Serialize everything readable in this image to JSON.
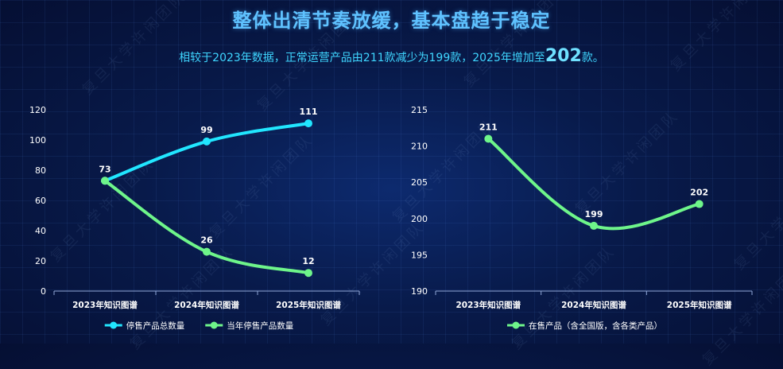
{
  "title": "整体出清节奏放缓，基本盘趋于稳定",
  "subtitle": {
    "prefix": "相较于2023年数据，正常运营产品由211款减少为199款，2025年增加至",
    "highlight": "202",
    "suffix": "款。"
  },
  "watermark": "复旦大学许闲团队",
  "colors": {
    "cyan": "#21e6ff",
    "green": "#6ef58a",
    "axis_text": "#ffffff"
  },
  "chart_data": [
    {
      "type": "line",
      "categories": [
        "2023年知识图谱",
        "2024年知识图谱",
        "2025年知识图谱"
      ],
      "ylim": [
        0,
        120
      ],
      "yticks": [
        0,
        20,
        40,
        60,
        80,
        100,
        120
      ],
      "legend": "bottom-center",
      "series": [
        {
          "name": "停售产品总数量",
          "values": [
            73,
            99,
            111
          ],
          "color": "#21e6ff"
        },
        {
          "name": "当年停售产品数量",
          "values": [
            73,
            26,
            12
          ],
          "color": "#6ef58a"
        }
      ]
    },
    {
      "type": "line",
      "categories": [
        "2023年知识图谱",
        "2024年知识图谱",
        "2025年知识图谱"
      ],
      "ylim": [
        190,
        215
      ],
      "yticks": [
        190,
        195,
        200,
        205,
        210,
        215
      ],
      "legend": "bottom-center",
      "series": [
        {
          "name": "在售产品（含全国版，含各类产品）",
          "values": [
            211,
            199,
            202
          ],
          "color": "#6ef58a"
        }
      ]
    }
  ]
}
